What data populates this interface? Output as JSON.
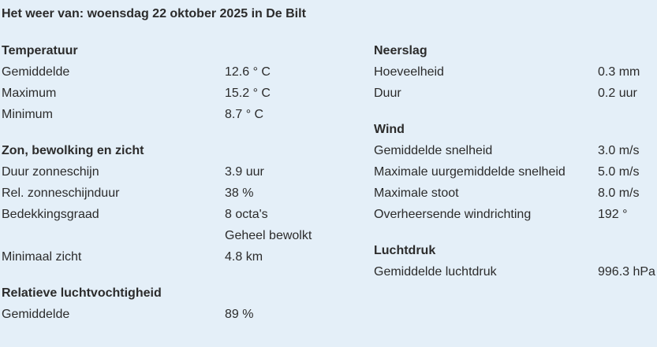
{
  "title": "Het weer van: woensdag 22 oktober 2025 in De Bilt",
  "columns": [
    {
      "side": "left",
      "sections": [
        {
          "heading": "Temperatuur",
          "rows": [
            {
              "label": "Gemiddelde",
              "value": "12.6 ° C"
            },
            {
              "label": "Maximum",
              "value": "15.2 ° C"
            },
            {
              "label": "Minimum",
              "value": "8.7 ° C"
            }
          ]
        },
        {
          "heading": "Zon, bewolking en zicht",
          "rows": [
            {
              "label": "Duur zonneschijn",
              "value": "3.9 uur"
            },
            {
              "label": "Rel. zonneschijnduur",
              "value": "38 %"
            },
            {
              "label": "Bedekkingsgraad",
              "value": "8 octa's"
            },
            {
              "label": "",
              "value": "Geheel bewolkt"
            },
            {
              "label": "Minimaal zicht",
              "value": "4.8 km"
            }
          ]
        },
        {
          "heading": "Relatieve luchtvochtigheid",
          "rows": [
            {
              "label": "Gemiddelde",
              "value": "89 %"
            }
          ]
        }
      ]
    },
    {
      "side": "right",
      "sections": [
        {
          "heading": "Neerslag",
          "rows": [
            {
              "label": "Hoeveelheid",
              "value": "0.3 mm"
            },
            {
              "label": "Duur",
              "value": "0.2 uur"
            }
          ]
        },
        {
          "heading": "Wind",
          "rows": [
            {
              "label": "Gemiddelde snelheid",
              "value": "3.0 m/s"
            },
            {
              "label": "Maximale uurgemiddelde snelheid",
              "value": "5.0 m/s"
            },
            {
              "label": "Maximale stoot",
              "value": "8.0 m/s"
            },
            {
              "label": "Overheersende windrichting",
              "value": "192 °"
            }
          ]
        },
        {
          "heading": "Luchtdruk",
          "rows": [
            {
              "label": "Gemiddelde luchtdruk",
              "value": "996.3 hPa"
            }
          ]
        }
      ]
    }
  ]
}
